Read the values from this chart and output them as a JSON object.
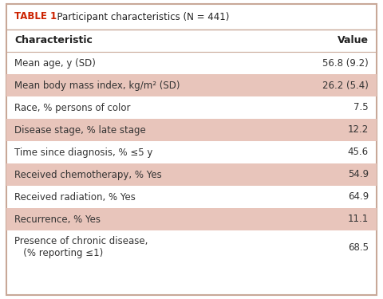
{
  "title_bold": "TABLE 1",
  "title_normal": "  Participant characteristics (N = 441)",
  "col_headers": [
    "Characteristic",
    "Value"
  ],
  "rows": [
    {
      "label": "Mean age, y (SD)",
      "value": "56.8 (9.2)",
      "shaded": false
    },
    {
      "label": "Mean body mass index, kg/m² (SD)",
      "value": "26.2 (5.4)",
      "shaded": true
    },
    {
      "label": "Race, % persons of color",
      "value": "7.5",
      "shaded": false
    },
    {
      "label": "Disease stage, % late stage",
      "value": "12.2",
      "shaded": true
    },
    {
      "label": "Time since diagnosis, % ≤5 y",
      "value": "45.6",
      "shaded": false
    },
    {
      "label": "Received chemotherapy, % Yes",
      "value": "54.9",
      "shaded": true
    },
    {
      "label": "Received radiation, % Yes",
      "value": "64.9",
      "shaded": false
    },
    {
      "label": "Recurrence, % Yes",
      "value": "11.1",
      "shaded": true
    },
    {
      "label": "Presence of chronic disease,\n   (% reporting ≤1)",
      "value": "68.5",
      "shaded": false
    }
  ],
  "bg_color": "#ffffff",
  "shaded_color": "#e8c5bb",
  "border_color": "#c8a898",
  "title_color_bold": "#cc2200",
  "title_color_normal": "#222222",
  "header_color": "#222222",
  "text_color": "#333333",
  "title_fontsize": 8.5,
  "header_fontsize": 9,
  "row_fontsize": 8.5
}
